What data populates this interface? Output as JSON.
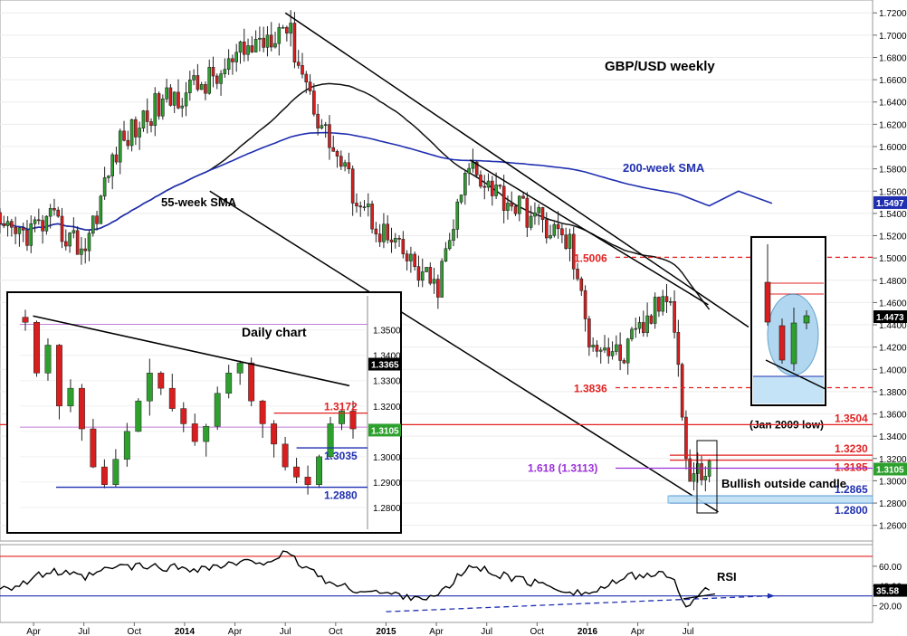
{
  "chart_data": {
    "type": "candlestick",
    "title": "GBP/USD weekly",
    "y_axis": {
      "range": [
        1.25,
        1.7275
      ],
      "ticks": [
        "1.2600",
        "1.2800",
        "1.3000",
        "1.3200",
        "1.3400",
        "1.3600",
        "1.3800",
        "1.4000",
        "1.4200",
        "1.4400",
        "1.4600",
        "1.4800",
        "1.5000",
        "1.5200",
        "1.5400",
        "1.5600",
        "1.5800",
        "1.6000",
        "1.6200",
        "1.6400",
        "1.6600",
        "1.6800",
        "1.7000",
        "1.7200"
      ]
    },
    "x_axis": {
      "ticks": [
        "Apr",
        "Jul",
        "Oct",
        "2014",
        "Apr",
        "Jul",
        "Oct",
        "2015",
        "Apr",
        "Jul",
        "Oct",
        "2016",
        "Apr",
        "Jul"
      ]
    },
    "anchor_closes": [
      {
        "date": "2013-03",
        "close": 1.52
      },
      {
        "date": "2013-05",
        "close": 1.532
      },
      {
        "date": "2013-07",
        "close": 1.508
      },
      {
        "date": "2013-09",
        "close": 1.6
      },
      {
        "date": "2013-11",
        "close": 1.632
      },
      {
        "date": "2014-01",
        "close": 1.65
      },
      {
        "date": "2014-03",
        "close": 1.662
      },
      {
        "date": "2014-05",
        "close": 1.69
      },
      {
        "date": "2014-07",
        "close": 1.712
      },
      {
        "date": "2014-09",
        "close": 1.625
      },
      {
        "date": "2014-11",
        "close": 1.562
      },
      {
        "date": "2015-01",
        "close": 1.518
      },
      {
        "date": "2015-03",
        "close": 1.486
      },
      {
        "date": "2015-04",
        "close": 1.47
      },
      {
        "date": "2015-06",
        "close": 1.585
      },
      {
        "date": "2015-08",
        "close": 1.555
      },
      {
        "date": "2015-10",
        "close": 1.535
      },
      {
        "date": "2015-12",
        "close": 1.512
      },
      {
        "date": "2016-01",
        "close": 1.432
      },
      {
        "date": "2016-03",
        "close": 1.41
      },
      {
        "date": "2016-05",
        "close": 1.452
      },
      {
        "date": "2016-06",
        "close": 1.475
      },
      {
        "date": "2016-07",
        "close": 1.3
      },
      {
        "date": "2016-08",
        "close": 1.311
      }
    ],
    "current_price": "1.4473",
    "current_close": "1.3105",
    "sma_200_value": "1.5497",
    "levels": [
      {
        "label": "1.5006",
        "value": 1.5006,
        "color": "#e32020",
        "style": "dashed"
      },
      {
        "label": "1.3836",
        "value": 1.3836,
        "color": "#e32020",
        "style": "dashed"
      },
      {
        "label": "(Jan 2009 low)",
        "value": 1.3504,
        "color": "#000000",
        "style": "text"
      },
      {
        "label": "1.3504",
        "value": 1.3504,
        "color": "#e32020",
        "style": "solid"
      },
      {
        "label": "1.3230",
        "value": 1.323,
        "color": "#e32020",
        "style": "solid"
      },
      {
        "label": "1.3185",
        "value": 1.3185,
        "color": "#e32020",
        "style": "solid"
      },
      {
        "label": "1.618 (1.3113)",
        "value": 1.3113,
        "color": "#9b30d9",
        "style": "solid"
      },
      {
        "label": "1.2865",
        "value": 1.2865,
        "color": "#1f2fb0",
        "style": "solid"
      },
      {
        "label": "1.2800",
        "value": 1.28,
        "color": "#1f2fb0",
        "style": "solid"
      }
    ],
    "annotations": [
      "55-week SMA",
      "200-week SMA",
      "Bullish outside candle",
      "RSI",
      "Daily chart"
    ],
    "rsi": {
      "ticks": [
        "60.00",
        "40.00",
        "20.00"
      ],
      "current": "35.58",
      "anchors": [
        {
          "date": "2013-03",
          "value": 40
        },
        {
          "date": "2013-05",
          "value": 55
        },
        {
          "date": "2013-07",
          "value": 48
        },
        {
          "date": "2013-09",
          "value": 60
        },
        {
          "date": "2014-02",
          "value": 58
        },
        {
          "date": "2014-06",
          "value": 66
        },
        {
          "date": "2014-07",
          "value": 72
        },
        {
          "date": "2014-10",
          "value": 40
        },
        {
          "date": "2015-01",
          "value": 32
        },
        {
          "date": "2015-04",
          "value": 28
        },
        {
          "date": "2015-06",
          "value": 60
        },
        {
          "date": "2015-09",
          "value": 46
        },
        {
          "date": "2016-01",
          "value": 32
        },
        {
          "date": "2016-04",
          "value": 52
        },
        {
          "date": "2016-06",
          "value": 50
        },
        {
          "date": "2016-07",
          "value": 18
        },
        {
          "date": "2016-08",
          "value": 35.58
        }
      ]
    },
    "inset": {
      "title": "Daily chart",
      "y_ticks": [
        "1.3500",
        "1.3400",
        "1.3300",
        "1.3200",
        "1.3100",
        "1.3000",
        "1.2900",
        "1.2800"
      ],
      "current": "1.3365",
      "close": "1.3105",
      "levels": [
        {
          "label": "1.3172",
          "value": 1.3172,
          "color": "#e32020"
        },
        {
          "label": "1.3035",
          "value": 1.3035,
          "color": "#1f2fb0"
        },
        {
          "label": "1.2880",
          "value": 1.288,
          "color": "#1f2fb0"
        }
      ],
      "closes": [
        1.353,
        1.333,
        1.344,
        1.32,
        1.327,
        1.311,
        1.296,
        1.289,
        1.299,
        1.31,
        1.322,
        1.333,
        1.327,
        1.319,
        1.313,
        1.306,
        1.312,
        1.325,
        1.333,
        1.337,
        1.322,
        1.313,
        1.305,
        1.296,
        1.292,
        1.289,
        1.3,
        1.313,
        1.318,
        1.311
      ]
    }
  }
}
